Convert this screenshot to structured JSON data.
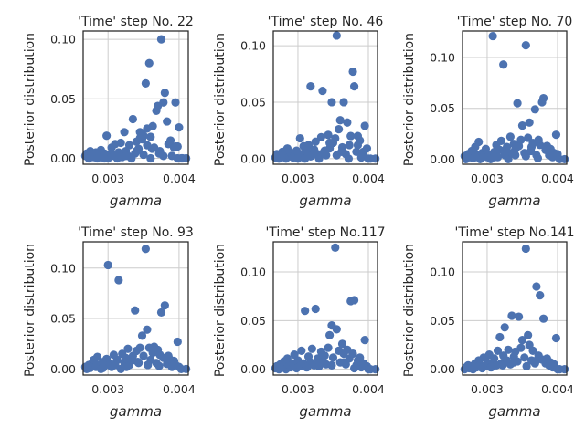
{
  "chart_data": [
    {
      "type": "scatter",
      "title": "'Time' step No. 22",
      "xlabel": "gamma",
      "ylabel": "Posterior distribution",
      "xlim": [
        0.00265,
        0.00413
      ],
      "ylim": [
        -0.005,
        0.107
      ],
      "xticks": [
        {
          "v": 0.003,
          "label": "0.003"
        },
        {
          "v": 0.004,
          "label": "0.004"
        }
      ],
      "yticks": [
        {
          "v": 0.0,
          "label": "0.00"
        },
        {
          "v": 0.05,
          "label": "0.05"
        },
        {
          "v": 0.1,
          "label": "0.10"
        }
      ],
      "grid": true,
      "x": [
        0.00268,
        0.0027,
        0.00273,
        0.00275,
        0.00278,
        0.0028,
        0.00283,
        0.00285,
        0.00288,
        0.0029,
        0.00293,
        0.00295,
        0.00298,
        0.003,
        0.00303,
        0.00305,
        0.00308,
        0.0031,
        0.00313,
        0.00315,
        0.00318,
        0.0032,
        0.00323,
        0.00325,
        0.00328,
        0.0033,
        0.00333,
        0.00335,
        0.00338,
        0.0034,
        0.00343,
        0.00345,
        0.00348,
        0.0035,
        0.00353,
        0.00355,
        0.00358,
        0.0036,
        0.00363,
        0.00365,
        0.00368,
        0.0037,
        0.00373,
        0.00375,
        0.00378,
        0.0038,
        0.00383,
        0.00385,
        0.00388,
        0.0039,
        0.00393,
        0.00395,
        0.00398,
        0.004,
        0.00403,
        0.0041,
        0.00295,
        0.0031,
        0.00325,
        0.0034,
        0.00355,
        0.00345,
        0.00362,
        0.0036,
        0.0035,
        0.00378,
        0.00372,
        0.00395,
        0.00398,
        0.00405
      ],
      "y": [
        0.002,
        0.004,
        0.0,
        0.006,
        0.003,
        0.001,
        0.005,
        0.0,
        0.002,
        0.007,
        0.001,
        0.004,
        0.019,
        0.0,
        0.003,
        0.009,
        0.002,
        0.012,
        0.0,
        0.005,
        0.013,
        0.001,
        0.022,
        0.006,
        0.002,
        0.011,
        0.0,
        0.033,
        0.004,
        0.014,
        0.008,
        0.022,
        0.016,
        0.003,
        0.063,
        0.025,
        0.08,
        0.018,
        0.027,
        0.009,
        0.04,
        0.044,
        0.006,
        0.1,
        0.047,
        0.055,
        0.031,
        0.012,
        0.015,
        0.002,
        0.009,
        0.047,
        0.01,
        0.026,
        0.0,
        0.0,
        0.0,
        0.003,
        0.002,
        0.006,
        0.011,
        0.017,
        0.008,
        0.0,
        0.019,
        0.002,
        0.004,
        0.01,
        0.0,
        0.0
      ]
    },
    {
      "type": "scatter",
      "title": "'Time' step No. 46",
      "xlabel": "gamma",
      "ylabel": "Posterior distribution",
      "xlim": [
        0.00265,
        0.00413
      ],
      "ylim": [
        -0.005,
        0.113
      ],
      "xticks": [
        {
          "v": 0.003,
          "label": "0.003"
        },
        {
          "v": 0.004,
          "label": "0.004"
        }
      ],
      "yticks": [
        {
          "v": 0.0,
          "label": "0.00"
        },
        {
          "v": 0.05,
          "label": "0.05"
        },
        {
          "v": 0.1,
          "label": "0.10"
        }
      ],
      "grid": true,
      "x": [
        0.00268,
        0.0027,
        0.00273,
        0.00275,
        0.00278,
        0.0028,
        0.00283,
        0.00285,
        0.00288,
        0.0029,
        0.00293,
        0.00295,
        0.00298,
        0.003,
        0.00303,
        0.00305,
        0.00308,
        0.0031,
        0.00313,
        0.00315,
        0.00318,
        0.0032,
        0.00323,
        0.00325,
        0.00328,
        0.0033,
        0.00333,
        0.00335,
        0.00338,
        0.0034,
        0.00343,
        0.00345,
        0.00348,
        0.0035,
        0.00353,
        0.00355,
        0.00358,
        0.0036,
        0.00363,
        0.00365,
        0.00368,
        0.0037,
        0.00373,
        0.00375,
        0.00378,
        0.0038,
        0.00383,
        0.00385,
        0.00388,
        0.0039,
        0.00393,
        0.00395,
        0.00398,
        0.004,
        0.00403,
        0.0041,
        0.00318,
        0.00336,
        0.00355,
        0.00362,
        0.00345,
        0.00372,
        0.00385,
        0.00392
      ],
      "y": [
        0.001,
        0.004,
        0.0,
        0.002,
        0.006,
        0.003,
        0.0,
        0.009,
        0.002,
        0.005,
        0.001,
        0.003,
        0.007,
        0.0,
        0.018,
        0.004,
        0.011,
        0.0,
        0.006,
        0.012,
        0.064,
        0.003,
        0.008,
        0.015,
        0.004,
        0.0,
        0.019,
        0.06,
        0.007,
        0.003,
        0.021,
        0.009,
        0.05,
        0.014,
        0.018,
        0.109,
        0.026,
        0.034,
        0.01,
        0.05,
        0.004,
        0.032,
        0.012,
        0.02,
        0.077,
        0.064,
        0.006,
        0.012,
        0.016,
        0.001,
        0.006,
        0.029,
        0.009,
        0.0,
        0.0,
        0.0,
        0.002,
        0.005,
        0.003,
        0.006,
        0.014,
        0.0,
        0.02,
        0.004
      ]
    },
    {
      "type": "scatter",
      "title": "'Time' step No. 70",
      "xlabel": "gamma",
      "ylabel": "Posterior distribution",
      "xlim": [
        0.00265,
        0.00413
      ],
      "ylim": [
        -0.005,
        0.126
      ],
      "xticks": [
        {
          "v": 0.003,
          "label": "0.003"
        },
        {
          "v": 0.004,
          "label": "0.004"
        }
      ],
      "yticks": [
        {
          "v": 0.0,
          "label": "0.00"
        },
        {
          "v": 0.05,
          "label": "0.05"
        },
        {
          "v": 0.1,
          "label": "0.10"
        }
      ],
      "grid": true,
      "x": [
        0.00268,
        0.0027,
        0.00273,
        0.00275,
        0.00278,
        0.0028,
        0.00283,
        0.00285,
        0.00288,
        0.0029,
        0.00293,
        0.00295,
        0.00298,
        0.003,
        0.00303,
        0.00305,
        0.00308,
        0.0031,
        0.00313,
        0.00315,
        0.00318,
        0.0032,
        0.00323,
        0.00325,
        0.00328,
        0.0033,
        0.00333,
        0.00335,
        0.00338,
        0.0034,
        0.00343,
        0.00345,
        0.00348,
        0.0035,
        0.00353,
        0.00355,
        0.00358,
        0.0036,
        0.00363,
        0.00365,
        0.00368,
        0.0037,
        0.00373,
        0.00375,
        0.00378,
        0.0038,
        0.00383,
        0.00385,
        0.00388,
        0.0039,
        0.00393,
        0.00395,
        0.00398,
        0.004,
        0.00403,
        0.0041,
        0.0031,
        0.00325,
        0.0034,
        0.00355,
        0.00362,
        0.00372
      ],
      "y": [
        0.003,
        0.0,
        0.005,
        0.002,
        0.008,
        0.001,
        0.012,
        0.004,
        0.017,
        0.0,
        0.006,
        0.003,
        0.01,
        0.002,
        0.004,
        0.0,
        0.121,
        0.007,
        0.014,
        0.002,
        0.009,
        0.018,
        0.093,
        0.004,
        0.012,
        0.0,
        0.022,
        0.006,
        0.015,
        0.004,
        0.055,
        0.013,
        0.019,
        0.033,
        0.006,
        0.112,
        0.021,
        0.036,
        0.012,
        0.016,
        0.049,
        0.004,
        0.019,
        0.014,
        0.056,
        0.06,
        0.009,
        0.013,
        0.004,
        0.01,
        0.002,
        0.006,
        0.024,
        0.005,
        0.0,
        0.0,
        0.002,
        0.006,
        0.01,
        0.003,
        0.008,
        0.001
      ]
    },
    {
      "type": "scatter",
      "title": "'Time' step No. 93",
      "xlabel": "gamma",
      "ylabel": "Posterior distribution",
      "xlim": [
        0.00265,
        0.00413
      ],
      "ylim": [
        -0.006,
        0.126
      ],
      "xticks": [
        {
          "v": 0.003,
          "label": "0.003"
        },
        {
          "v": 0.004,
          "label": "0.004"
        }
      ],
      "yticks": [
        {
          "v": 0.0,
          "label": "0.00"
        },
        {
          "v": 0.05,
          "label": "0.05"
        },
        {
          "v": 0.1,
          "label": "0.10"
        }
      ],
      "grid": true,
      "x": [
        0.00268,
        0.0027,
        0.00273,
        0.00275,
        0.00278,
        0.0028,
        0.00283,
        0.00285,
        0.00288,
        0.0029,
        0.00293,
        0.00295,
        0.00298,
        0.003,
        0.00303,
        0.00305,
        0.00308,
        0.0031,
        0.00313,
        0.00315,
        0.00318,
        0.0032,
        0.00323,
        0.00325,
        0.00328,
        0.0033,
        0.00333,
        0.00335,
        0.00338,
        0.0034,
        0.00343,
        0.00345,
        0.00348,
        0.0035,
        0.00353,
        0.00355,
        0.00358,
        0.0036,
        0.00363,
        0.00365,
        0.00368,
        0.0037,
        0.00373,
        0.00375,
        0.00378,
        0.0038,
        0.00383,
        0.00385,
        0.00388,
        0.0039,
        0.00393,
        0.00395,
        0.00398,
        0.004,
        0.00403,
        0.0041,
        0.00293,
        0.0031,
        0.00326,
        0.00342,
        0.00356,
        0.00372,
        0.00384
      ],
      "y": [
        0.002,
        0.0,
        0.004,
        0.001,
        0.006,
        0.009,
        0.002,
        0.012,
        0.004,
        0.0,
        0.007,
        0.003,
        0.01,
        0.103,
        0.005,
        0.002,
        0.014,
        0.004,
        0.009,
        0.088,
        0.0,
        0.015,
        0.006,
        0.011,
        0.02,
        0.004,
        0.008,
        0.013,
        0.058,
        0.018,
        0.006,
        0.021,
        0.033,
        0.013,
        0.119,
        0.039,
        0.021,
        0.009,
        0.016,
        0.022,
        0.006,
        0.019,
        0.014,
        0.056,
        0.011,
        0.063,
        0.005,
        0.013,
        0.009,
        0.002,
        0.008,
        0.004,
        0.027,
        0.002,
        0.0,
        0.0,
        0.001,
        0.005,
        0.002,
        0.007,
        0.004,
        0.003,
        0.011
      ]
    },
    {
      "type": "scatter",
      "title": "'Time' step No.117",
      "xlabel": "gamma",
      "ylabel": "Posterior distribution",
      "xlim": [
        0.00265,
        0.00413
      ],
      "ylim": [
        -0.006,
        0.131
      ],
      "xticks": [
        {
          "v": 0.003,
          "label": "0.003"
        },
        {
          "v": 0.004,
          "label": "0.004"
        }
      ],
      "yticks": [
        {
          "v": 0.0,
          "label": "0.00"
        },
        {
          "v": 0.05,
          "label": "0.05"
        },
        {
          "v": 0.1,
          "label": "0.10"
        }
      ],
      "grid": true,
      "x": [
        0.00268,
        0.0027,
        0.00273,
        0.00275,
        0.00278,
        0.0028,
        0.00283,
        0.00285,
        0.00288,
        0.0029,
        0.00293,
        0.00295,
        0.00298,
        0.003,
        0.00303,
        0.00305,
        0.00308,
        0.0031,
        0.00313,
        0.00315,
        0.00318,
        0.0032,
        0.00323,
        0.00325,
        0.00328,
        0.0033,
        0.00333,
        0.00335,
        0.00338,
        0.0034,
        0.00343,
        0.00345,
        0.00348,
        0.0035,
        0.00353,
        0.00355,
        0.00358,
        0.0036,
        0.00363,
        0.00365,
        0.00368,
        0.0037,
        0.00373,
        0.00375,
        0.00378,
        0.0038,
        0.00383,
        0.00385,
        0.00388,
        0.0039,
        0.00393,
        0.00395,
        0.00398,
        0.004,
        0.00403,
        0.0041,
        0.00312,
        0.00332,
        0.00348,
        0.00365,
        0.0038
      ],
      "y": [
        0.001,
        0.003,
        0.0,
        0.005,
        0.002,
        0.008,
        0.0,
        0.011,
        0.004,
        0.002,
        0.006,
        0.015,
        0.001,
        0.009,
        0.003,
        0.019,
        0.006,
        0.06,
        0.002,
        0.013,
        0.007,
        0.021,
        0.004,
        0.062,
        0.011,
        0.003,
        0.018,
        0.008,
        0.014,
        0.005,
        0.022,
        0.035,
        0.045,
        0.012,
        0.125,
        0.041,
        0.019,
        0.007,
        0.026,
        0.016,
        0.005,
        0.02,
        0.011,
        0.07,
        0.016,
        0.071,
        0.004,
        0.009,
        0.012,
        0.002,
        0.006,
        0.03,
        0.003,
        0.0,
        0.0,
        0.0,
        0.002,
        0.006,
        0.004,
        0.007,
        0.001
      ]
    },
    {
      "type": "scatter",
      "title": "'Time' step No.141",
      "xlabel": "gamma",
      "ylabel": "Posterior distribution",
      "xlim": [
        0.00265,
        0.00413
      ],
      "ylim": [
        -0.006,
        0.131
      ],
      "xticks": [
        {
          "v": 0.003,
          "label": "0.003"
        },
        {
          "v": 0.004,
          "label": "0.004"
        }
      ],
      "yticks": [
        {
          "v": 0.0,
          "label": "0.00"
        },
        {
          "v": 0.05,
          "label": "0.05"
        },
        {
          "v": 0.1,
          "label": "0.10"
        }
      ],
      "grid": true,
      "x": [
        0.00268,
        0.0027,
        0.00273,
        0.00275,
        0.00278,
        0.0028,
        0.00283,
        0.00285,
        0.00288,
        0.0029,
        0.00293,
        0.00295,
        0.00298,
        0.003,
        0.00303,
        0.00305,
        0.00308,
        0.0031,
        0.00313,
        0.00315,
        0.00318,
        0.0032,
        0.00323,
        0.00325,
        0.00328,
        0.0033,
        0.00333,
        0.00335,
        0.00338,
        0.0034,
        0.00343,
        0.00345,
        0.00348,
        0.0035,
        0.00353,
        0.00355,
        0.00358,
        0.0036,
        0.00363,
        0.00365,
        0.00368,
        0.0037,
        0.00373,
        0.00375,
        0.00378,
        0.0038,
        0.00383,
        0.00385,
        0.00388,
        0.0039,
        0.00393,
        0.00395,
        0.00398,
        0.004,
        0.00403,
        0.0041,
        0.00306,
        0.00322,
        0.00338,
        0.00356,
        0.0037
      ],
      "y": [
        0.0,
        0.002,
        0.004,
        0.001,
        0.003,
        0.0,
        0.006,
        0.002,
        0.009,
        0.004,
        0.001,
        0.012,
        0.003,
        0.007,
        0.015,
        0.002,
        0.005,
        0.011,
        0.004,
        0.019,
        0.033,
        0.006,
        0.014,
        0.043,
        0.009,
        0.02,
        0.005,
        0.055,
        0.013,
        0.018,
        0.008,
        0.054,
        0.022,
        0.03,
        0.012,
        0.124,
        0.035,
        0.025,
        0.009,
        0.019,
        0.006,
        0.085,
        0.014,
        0.076,
        0.01,
        0.052,
        0.006,
        0.011,
        0.004,
        0.007,
        0.002,
        0.005,
        0.032,
        0.0,
        0.0,
        0.0,
        0.002,
        0.004,
        0.007,
        0.003,
        0.009
      ]
    }
  ]
}
